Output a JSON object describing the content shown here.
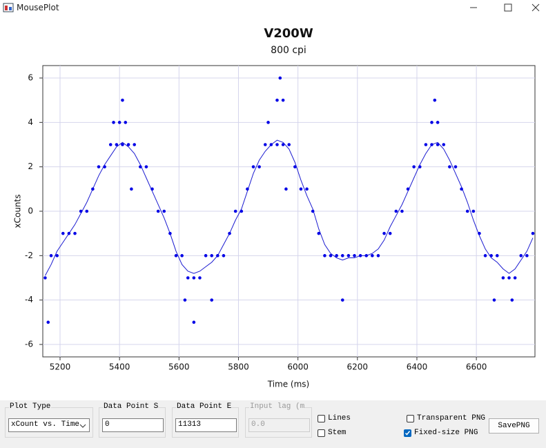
{
  "window": {
    "title": "MousePlot"
  },
  "chart_data": {
    "type": "scatter",
    "title": "V200W",
    "subtitle": "800 cpi",
    "x_label": "Time (ms)",
    "y_label": "xCounts",
    "xlim": [
      5142,
      6797
    ],
    "ylim": [
      -6.56,
      6.56
    ],
    "xticks": [
      5200,
      5400,
      5600,
      5800,
      6000,
      6200,
      6400,
      6600
    ],
    "yticks": [
      -6,
      -4,
      -2,
      0,
      2,
      4,
      6
    ],
    "grid": true,
    "series": [
      {
        "type": "line",
        "color": "#1a1ad0",
        "x": [
          5150,
          5170,
          5190,
          5210,
          5230,
          5250,
          5270,
          5290,
          5310,
          5330,
          5350,
          5370,
          5390,
          5410,
          5430,
          5450,
          5470,
          5490,
          5510,
          5530,
          5550,
          5570,
          5590,
          5610,
          5630,
          5650,
          5670,
          5690,
          5710,
          5730,
          5750,
          5770,
          5790,
          5810,
          5830,
          5850,
          5870,
          5890,
          5910,
          5930,
          5950,
          5970,
          5990,
          6010,
          6030,
          6050,
          6070,
          6090,
          6110,
          6130,
          6150,
          6170,
          6190,
          6210,
          6230,
          6250,
          6270,
          6290,
          6310,
          6330,
          6350,
          6370,
          6390,
          6410,
          6430,
          6450,
          6470,
          6490,
          6510,
          6530,
          6550,
          6570,
          6590,
          6610,
          6630,
          6650,
          6670,
          6690,
          6710,
          6730,
          6750,
          6770,
          6790
        ],
        "values": [
          -2.9,
          -2.4,
          -1.8,
          -1.4,
          -1.0,
          -0.6,
          -0.1,
          0.4,
          1.0,
          1.6,
          2.1,
          2.5,
          2.9,
          3.1,
          2.9,
          2.6,
          2.1,
          1.5,
          0.9,
          0.3,
          -0.3,
          -1.0,
          -1.8,
          -2.4,
          -2.7,
          -2.8,
          -2.7,
          -2.5,
          -2.3,
          -2.0,
          -1.5,
          -1.0,
          -0.4,
          0.1,
          0.9,
          1.7,
          2.3,
          2.7,
          3.0,
          3.2,
          3.1,
          2.8,
          2.2,
          1.4,
          0.7,
          0.1,
          -0.8,
          -1.5,
          -1.9,
          -2.1,
          -2.2,
          -2.1,
          -2.1,
          -2.0,
          -2.0,
          -1.9,
          -1.7,
          -1.3,
          -0.7,
          -0.2,
          0.3,
          0.9,
          1.5,
          2.1,
          2.6,
          3.0,
          3.1,
          2.8,
          2.3,
          1.7,
          1.1,
          0.4,
          -0.4,
          -1.1,
          -1.7,
          -2.1,
          -2.3,
          -2.6,
          -2.8,
          -2.6,
          -2.2,
          -1.8,
          -1.2
        ]
      },
      {
        "type": "scatter",
        "color": "#0000e6",
        "x": [
          5150,
          5170,
          5190,
          5210,
          5230,
          5250,
          5270,
          5290,
          5310,
          5330,
          5350,
          5370,
          5390,
          5410,
          5430,
          5450,
          5470,
          5490,
          5510,
          5530,
          5550,
          5570,
          5590,
          5610,
          5630,
          5650,
          5670,
          5690,
          5710,
          5730,
          5750,
          5770,
          5790,
          5810,
          5830,
          5850,
          5870,
          5890,
          5910,
          5930,
          5950,
          5970,
          5990,
          6010,
          6030,
          6050,
          6070,
          6090,
          6110,
          6130,
          6150,
          6170,
          6190,
          6210,
          6230,
          6250,
          6270,
          6290,
          6310,
          6330,
          6350,
          6370,
          6390,
          6410,
          6430,
          6450,
          6470,
          6490,
          6510,
          6530,
          6550,
          6570,
          6590,
          6610,
          6630,
          6650,
          6670,
          6690,
          6710,
          6730,
          6750,
          6770,
          6790,
          5160,
          5400,
          5420,
          5410,
          5940,
          5930,
          5950,
          6460,
          6470,
          5650,
          5620,
          5710,
          6150,
          6660,
          6720,
          5380,
          5900,
          6450,
          5440,
          5960
        ],
        "values": [
          -3,
          -2,
          -2,
          -1,
          -1,
          -1,
          0,
          0,
          1,
          2,
          2,
          3,
          3,
          3,
          3,
          3,
          2,
          2,
          1,
          0,
          0,
          -1,
          -2,
          -2,
          -3,
          -3,
          -3,
          -2,
          -2,
          -2,
          -2,
          -1,
          0,
          0,
          1,
          2,
          2,
          3,
          3,
          3,
          3,
          3,
          2,
          1,
          1,
          0,
          -1,
          -2,
          -2,
          -2,
          -2,
          -2,
          -2,
          -2,
          -2,
          -2,
          -2,
          -1,
          -1,
          0,
          0,
          1,
          2,
          2,
          3,
          3,
          3,
          3,
          2,
          2,
          1,
          0,
          0,
          -1,
          -2,
          -2,
          -2,
          -3,
          -3,
          -3,
          -2,
          -2,
          -1,
          -5,
          4,
          4,
          5,
          6,
          5,
          5,
          5,
          4,
          -5,
          -4,
          -4,
          -4,
          -4,
          -4,
          4,
          4,
          4,
          1,
          1
        ]
      }
    ]
  },
  "controls": {
    "plot_type": {
      "label": "Plot Type",
      "value": "xCount vs. Time"
    },
    "start": {
      "label": "Data Point Start",
      "value": "0"
    },
    "end": {
      "label": "Data Point End",
      "value": "11313"
    },
    "lag": {
      "label": "Input lag (ms)",
      "value": "0.0"
    },
    "lines": {
      "label": "Lines",
      "checked": false
    },
    "stem": {
      "label": "Stem",
      "checked": false
    },
    "transparent": {
      "label": "Transparent PNG",
      "checked": false
    },
    "fixed": {
      "label": "Fixed-size PNG",
      "checked": true
    },
    "save": "SavePNG"
  }
}
